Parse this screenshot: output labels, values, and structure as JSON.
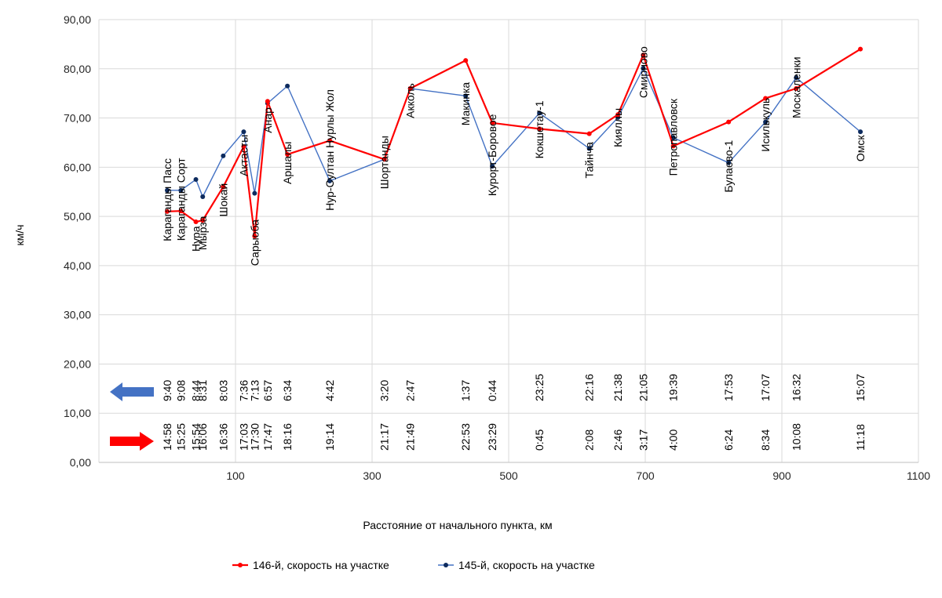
{
  "chart_data": {
    "type": "line",
    "xlabel": "Расстояние от начального пункта, км",
    "ylabel": "км/ч",
    "xlim": [
      -100,
      1100
    ],
    "ylim": [
      0,
      90
    ],
    "x_ticks": [
      100,
      300,
      500,
      700,
      900,
      1100
    ],
    "x_tick_labels": [
      "100",
      "300",
      "500",
      "700",
      "900",
      "1100"
    ],
    "y_ticks": [
      0,
      10,
      20,
      30,
      40,
      50,
      60,
      70,
      80,
      90
    ],
    "y_tick_labels": [
      "0,00",
      "10,00",
      "20,00",
      "30,00",
      "40,00",
      "50,00",
      "60,00",
      "70,00",
      "80,00",
      "90,00"
    ],
    "grid": true,
    "legend_position": "bottom",
    "stations": [
      {
        "name": "Караганды Пасс",
        "x": 0,
        "train146": 51.0,
        "train145": 55.3,
        "time146": "14:58",
        "time145": "9:40"
      },
      {
        "name": "Караганды Сорт",
        "x": 20,
        "train146": 51.1,
        "train145": 55.3,
        "time146": "15:25",
        "time145": "9:08"
      },
      {
        "name": "Нура",
        "x": 42,
        "train146": 48.9,
        "train145": 57.5,
        "time146": "15:54",
        "time145": "8:44"
      },
      {
        "name": "Мырза",
        "x": 52,
        "train146": 49.2,
        "train145": 54.0,
        "time146": "16:06",
        "time145": "8:31"
      },
      {
        "name": "Шокай",
        "x": 82,
        "train146": 56.0,
        "train145": 62.3,
        "time146": "16:36",
        "time145": "8:03"
      },
      {
        "name": "Актасты",
        "x": 112,
        "train146": 64.2,
        "train145": 67.2,
        "time146": "17:03",
        "time145": "7:36"
      },
      {
        "name": "Сарыоба",
        "x": 128,
        "train146": 46.0,
        "train145": 54.7,
        "time146": "17:30",
        "time145": "7:13"
      },
      {
        "name": "Анар",
        "x": 147,
        "train146": 73.4,
        "train145": 73.0,
        "time146": "17:47",
        "time145": "6:57"
      },
      {
        "name": "Аршалы",
        "x": 176,
        "train146": 62.6,
        "train145": 76.5,
        "time146": "18:16",
        "time145": "6:34"
      },
      {
        "name": "Нур-Султан Нурлы Жол",
        "x": 238,
        "train146": 65.4,
        "train145": 57.2,
        "time146": "19:14",
        "time145": "4:42"
      },
      {
        "name": "Шортанды",
        "x": 318,
        "train146": 61.6,
        "train145": 61.6,
        "time146": "21:17",
        "time145": "3:20"
      },
      {
        "name": "Акколь",
        "x": 356,
        "train146": 76.0,
        "train145": 76.0,
        "time146": "21:49",
        "time145": "2:47"
      },
      {
        "name": "Макинка",
        "x": 437,
        "train146": 81.7,
        "train145": 74.5,
        "time146": "22:53",
        "time145": "1:37"
      },
      {
        "name": "Курорт-Боровое",
        "x": 476,
        "train146": 69.0,
        "train145": 60.2,
        "time146": "23:29",
        "time145": "0:44"
      },
      {
        "name": "Кокшетау-1",
        "x": 545,
        "train146": 67.8,
        "train145": 71.0,
        "time146": "0:45",
        "time145": "23:25"
      },
      {
        "name": "Тайнча",
        "x": 618,
        "train146": 66.8,
        "train145": 63.8,
        "time146": "2:08",
        "time145": "22:16"
      },
      {
        "name": "Кияллы",
        "x": 660,
        "train146": 70.7,
        "train145": 70.1,
        "time146": "2:46",
        "time145": "21:38"
      },
      {
        "name": "Смирново",
        "x": 697,
        "train146": 82.8,
        "train145": 80.1,
        "time146": "3:17",
        "time145": "21:05"
      },
      {
        "name": "Петропавловск",
        "x": 741,
        "train146": 64.3,
        "train145": 66.0,
        "time146": "4:00",
        "time145": "19:39"
      },
      {
        "name": "Булаево-1",
        "x": 822,
        "train146": 69.2,
        "train145": 60.9,
        "time146": "6:24",
        "time145": "17:53"
      },
      {
        "name": "Исилькуль",
        "x": 876,
        "train146": 74.0,
        "train145": 69.2,
        "time146": "8:34",
        "time145": "17:07"
      },
      {
        "name": "Москаленки",
        "x": 921,
        "train146": 76.0,
        "train145": 78.2,
        "time146": "10:08",
        "time145": "16:32"
      },
      {
        "name": "Омск",
        "x": 1015,
        "train146": 84.0,
        "train145": 67.2,
        "time146": "11:18",
        "time145": "15:07"
      }
    ],
    "series": [
      {
        "name": "146-й, скорость на участке",
        "key": "train146",
        "color": "#FF0000"
      },
      {
        "name": "145-й, скорость на участке",
        "key": "train145",
        "color": "#4472C4",
        "marker_color": "#0D2B5E"
      }
    ],
    "arrows": [
      {
        "direction": "left",
        "meaning": "train145",
        "color": "#4472C4"
      },
      {
        "direction": "right",
        "meaning": "train146",
        "color": "#FF0000"
      }
    ]
  }
}
